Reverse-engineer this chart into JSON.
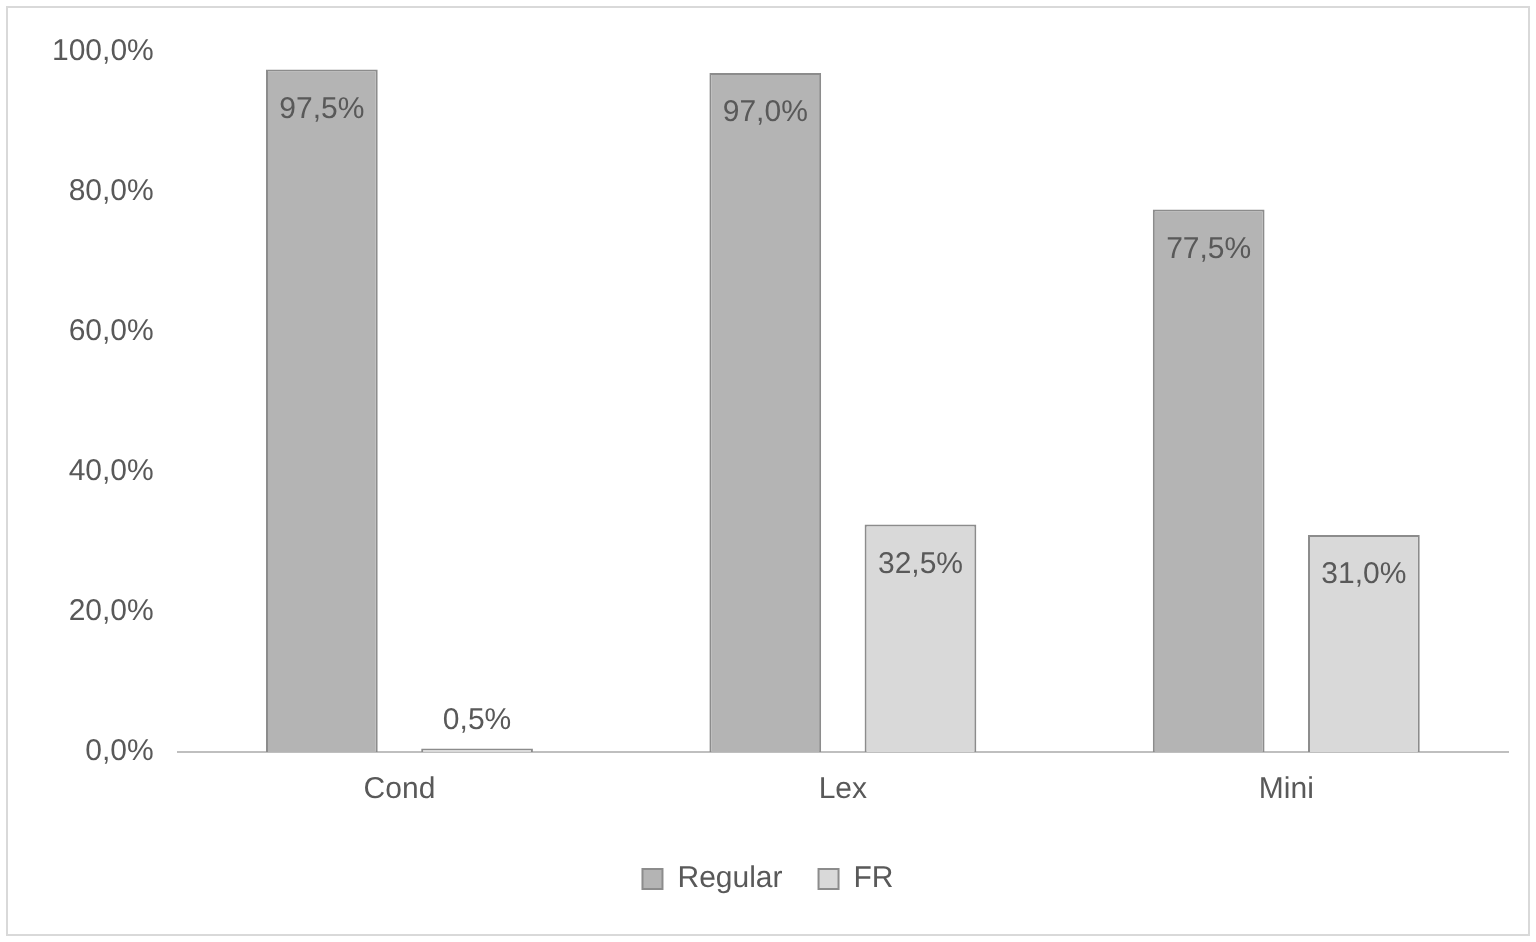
{
  "chart_data": {
    "type": "bar",
    "categories": [
      "Cond",
      "Lex",
      "Mini"
    ],
    "series": [
      {
        "name": "Regular",
        "color": "#b4b4b4",
        "values": [
          97.5,
          97.0,
          77.5
        ],
        "value_labels": [
          "97,5%",
          "97,0%",
          "77,5%"
        ]
      },
      {
        "name": "FR",
        "color": "#d9d9d9",
        "values": [
          0.5,
          32.5,
          31.0
        ],
        "value_labels": [
          "0,5%",
          "32,5%",
          "31,0%"
        ]
      }
    ],
    "ylim": [
      0,
      100
    ],
    "yticks": [
      {
        "value": 0,
        "label": "0,0%"
      },
      {
        "value": 20,
        "label": "20,0%"
      },
      {
        "value": 40,
        "label": "40,0%"
      },
      {
        "value": 60,
        "label": "60,0%"
      },
      {
        "value": 80,
        "label": "80,0%"
      },
      {
        "value": 100,
        "label": "100,0%"
      }
    ],
    "grid": false,
    "legend": "bottom"
  }
}
